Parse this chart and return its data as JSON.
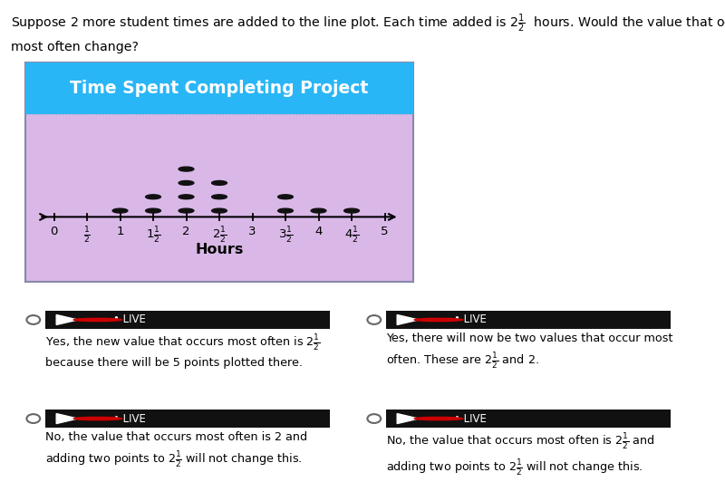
{
  "chart_title": "Time Spent Completing Project",
  "chart_bg_color": "#d9b8e8",
  "chart_title_bg": "#29b6f6",
  "xlabel": "Hours",
  "dot_data": {
    "1.0": 1,
    "1.5": 2,
    "2.0": 4,
    "2.5": 3,
    "3.5": 2,
    "4.0": 1,
    "4.5": 1
  },
  "xmin": 0,
  "xmax": 5,
  "dot_color": "#111111",
  "answer_options": [
    "Yes, the new value that occurs most often is $2\\frac{1}{2}$\nbecause there will be 5 points plotted there.",
    "Yes, there will now be two values that occur most\noften. These are $2\\frac{1}{2}$ and 2.",
    "No, the value that occurs most often is 2 and\nadding two points to $2\\frac{1}{2}$ will not change this.",
    "No, the value that occurs most often is $2\\frac{1}{2}$ and\nadding two points to $2\\frac{1}{2}$ will not change this."
  ]
}
